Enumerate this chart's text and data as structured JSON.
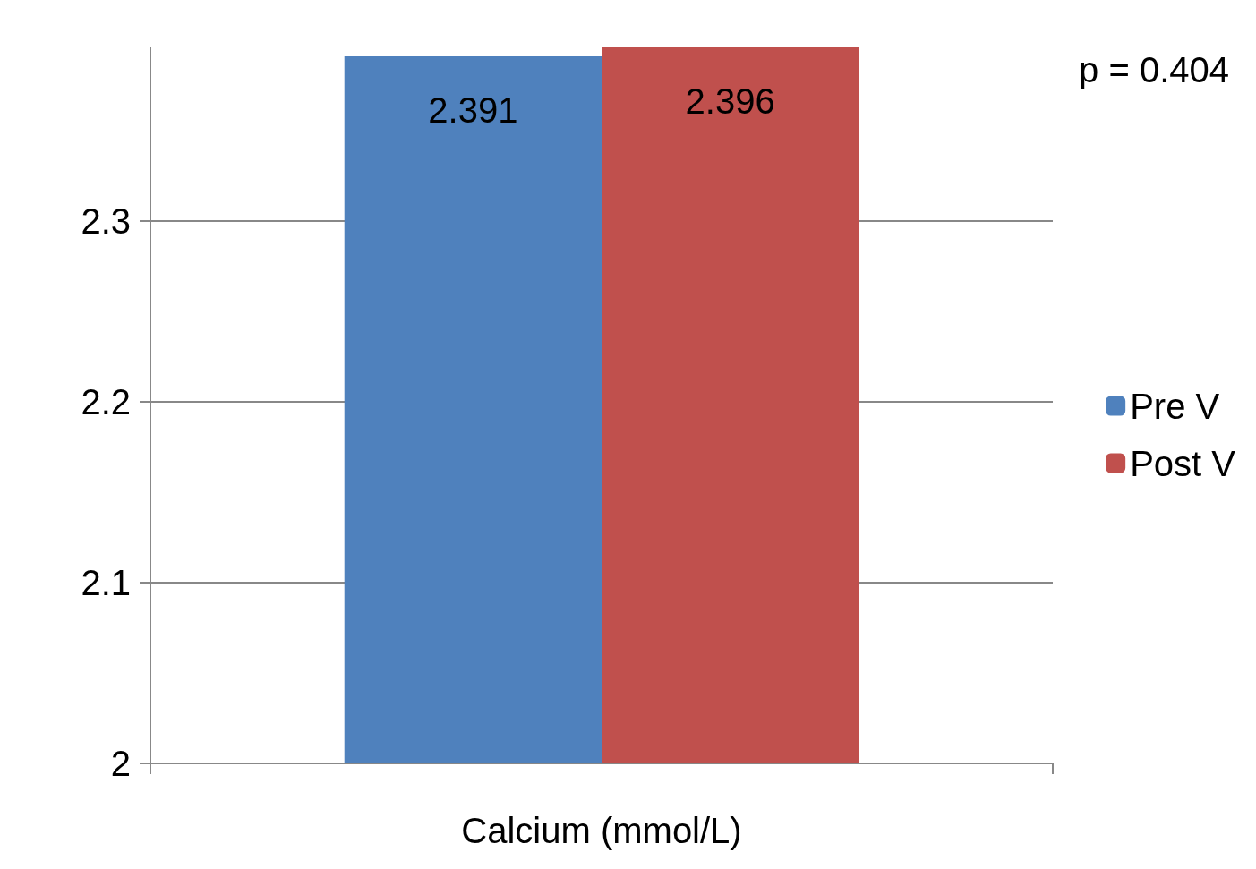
{
  "chart_data": {
    "type": "bar",
    "xlabel": "Calcium (mmol/L)",
    "categories": [
      null
    ],
    "series": [
      {
        "name": "Pre V",
        "color": "#4f81bd",
        "values": [
          2.391
        ]
      },
      {
        "name": "Post V",
        "color": "#c0504d",
        "values": [
          2.396
        ]
      }
    ],
    "ylim": [
      2,
      2.396
    ],
    "yticks": [
      2,
      2.1,
      2.2,
      2.3
    ],
    "grid": "y",
    "legend": "right",
    "data_labels": true,
    "annotations": [
      "p = 0.404"
    ]
  }
}
